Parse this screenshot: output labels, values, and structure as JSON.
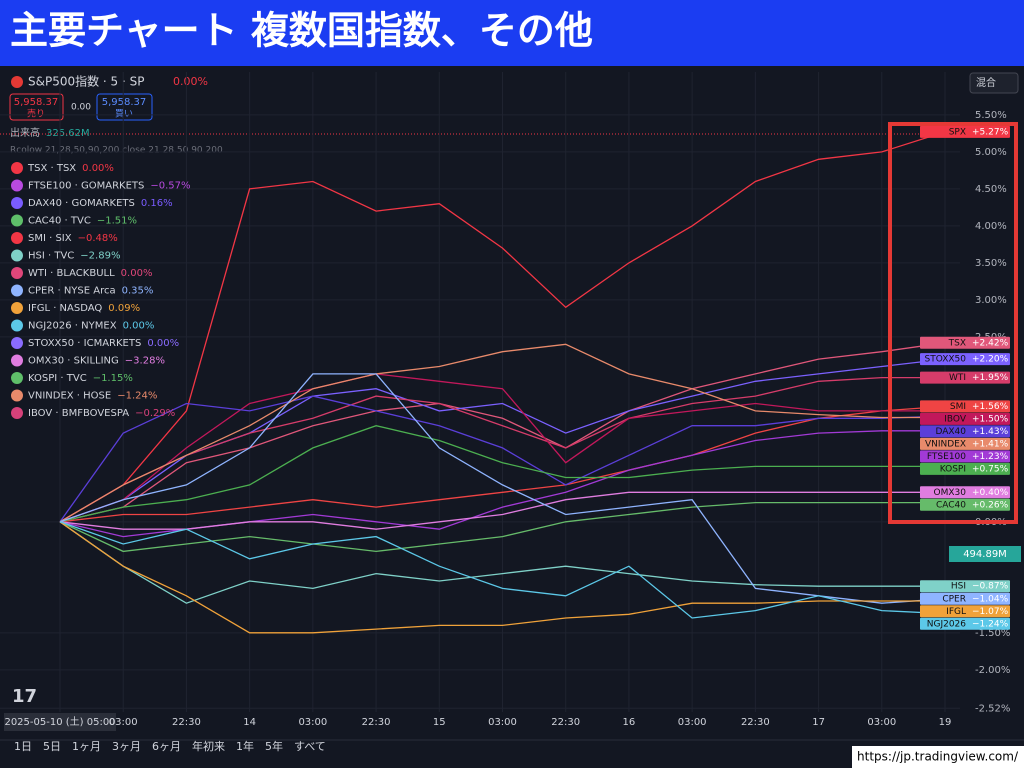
{
  "header": {
    "title": "主要チャート 複数国指数、その他"
  },
  "toolbar": {
    "symbol": "S&P500指数 · 5 · SP",
    "change": "0.00%",
    "sell_price": "5,958.37",
    "sell_label": "売り",
    "spread": "0.00",
    "buy_price": "5,958.37",
    "buy_label": "買い",
    "volume_label": "出来高",
    "volume_value": "325.62M",
    "indicator": "Rcolow 21,28,50,90,200 close 21 28 50 90 200",
    "scale_mode": "混合"
  },
  "legend_items": [
    {
      "name": "TSX · TSX",
      "change": "0.00%",
      "color": "#f23645"
    },
    {
      "name": "FTSE100 · GOMARKETS",
      "change": "−0.57%",
      "color": "#b84ae0"
    },
    {
      "name": "DAX40 · GOMARKETS",
      "change": "0.16%",
      "color": "#7a5cff"
    },
    {
      "name": "CAC40 · TVC",
      "change": "−1.51%",
      "color": "#5fbf6a"
    },
    {
      "name": "SMI · SIX",
      "change": "−0.48%",
      "color": "#f23645"
    },
    {
      "name": "HSI · TVC",
      "change": "−2.89%",
      "color": "#7fd1c8"
    },
    {
      "name": "WTI · BLACKBULL",
      "change": "0.00%",
      "color": "#e0467a"
    },
    {
      "name": "CPER · NYSE Arca",
      "change": "0.35%",
      "color": "#8fb4ff"
    },
    {
      "name": "IFGL · NASDAQ",
      "change": "0.09%",
      "color": "#f0a23a"
    },
    {
      "name": "NGJ2026 · NYMEX",
      "change": "0.00%",
      "color": "#5cc8e8"
    },
    {
      "name": "STOXX50 · ICMARKETS",
      "change": "0.00%",
      "color": "#8a6cff"
    },
    {
      "name": "OMX30 · SKILLING",
      "change": "−3.28%",
      "color": "#e07de0"
    },
    {
      "name": "KOSPI · TVC",
      "change": "−1.15%",
      "color": "#5fbf6a"
    },
    {
      "name": "VNINDEX · HOSE",
      "change": "−1.24%",
      "color": "#e88a6b"
    },
    {
      "name": "IBOV · BMFBOVESPA",
      "change": "−0.29%",
      "color": "#d6417a"
    }
  ],
  "chart_data": {
    "type": "line",
    "categories": [
      "2025-05-10 (土)  05:00",
      "03:00",
      "22:30",
      "14",
      "03:00",
      "22:30",
      "15",
      "03:00",
      "22:30",
      "16",
      "03:00",
      "22:30",
      "17",
      "03:00",
      "19"
    ],
    "ylim": [
      -2.57,
      6.08
    ],
    "yticks": [
      {
        "value": 5.5,
        "label": "5.50%"
      },
      {
        "value": 5.0,
        "label": "5.00%"
      },
      {
        "value": 4.5,
        "label": "4.50%"
      },
      {
        "value": 4.0,
        "label": "4.00%"
      },
      {
        "value": 3.5,
        "label": "3.50%"
      },
      {
        "value": 3.0,
        "label": "3.00%"
      },
      {
        "value": 2.5,
        "label": "2.50%"
      },
      {
        "value": 0,
        "label": "0.00%"
      },
      {
        "value": -1.5,
        "label": "-1.50%"
      },
      {
        "value": -2.0,
        "label": "-2.00%"
      },
      {
        "value": -2.52,
        "label": "-2.52%"
      }
    ],
    "grid": true,
    "volume_badge": "494.89M",
    "series": [
      {
        "name": "SPX",
        "color": "#f23645",
        "values": [
          0,
          0.5,
          1.5,
          4.5,
          4.6,
          4.2,
          4.3,
          3.7,
          2.9,
          3.5,
          4.0,
          4.6,
          4.9,
          5.0,
          5.27
        ],
        "value_labels": [
          "+5.27%"
        ]
      },
      {
        "name": "TSX",
        "color": "#e0577a",
        "values": [
          0,
          0.2,
          0.8,
          1.0,
          1.3,
          1.5,
          1.6,
          1.4,
          1.0,
          1.5,
          1.8,
          2.0,
          2.2,
          2.3,
          2.42
        ],
        "value_labels": [
          "+2.42%"
        ]
      },
      {
        "name": "STOXX50",
        "color": "#7b61ff",
        "values": [
          0,
          0.3,
          0.9,
          1.2,
          1.7,
          1.8,
          1.5,
          1.6,
          1.2,
          1.5,
          1.7,
          1.9,
          2.0,
          2.1,
          2.2
        ],
        "value_labels": [
          "+2.20%"
        ]
      },
      {
        "name": "WTI",
        "color": "#d63c6a",
        "values": [
          0,
          0.5,
          0.9,
          1.2,
          1.4,
          1.7,
          1.6,
          1.3,
          1.0,
          1.4,
          1.6,
          1.7,
          1.9,
          1.95,
          1.95
        ],
        "value_labels": [
          "+1.95%"
        ]
      },
      {
        "name": "SMI",
        "color": "#ef4444",
        "values": [
          0,
          0.1,
          0.1,
          0.2,
          0.3,
          0.2,
          0.3,
          0.4,
          0.5,
          0.7,
          0.9,
          1.2,
          1.4,
          1.5,
          1.56
        ],
        "value_labels": [
          "+1.56%"
        ]
      },
      {
        "name": "IBOV",
        "color": "#c2185b",
        "values": [
          0,
          0.3,
          1.0,
          1.6,
          1.8,
          2.0,
          1.9,
          1.8,
          0.8,
          1.4,
          1.5,
          1.6,
          1.5,
          1.5,
          1.5
        ],
        "value_labels": [
          "+1.50%"
        ]
      },
      {
        "name": "DAX40",
        "color": "#5b3fd9",
        "values": [
          0,
          1.2,
          1.6,
          1.5,
          1.7,
          1.5,
          1.3,
          1.0,
          0.5,
          0.9,
          1.3,
          1.3,
          1.4,
          1.4,
          1.43
        ],
        "value_labels": [
          "+1.43%"
        ]
      },
      {
        "name": "VNINDEX",
        "color": "#e88a6b",
        "values": [
          0,
          0.5,
          0.9,
          1.3,
          1.8,
          2.0,
          2.1,
          2.3,
          2.4,
          2.0,
          1.8,
          1.5,
          1.45,
          1.41,
          1.41
        ],
        "value_labels": [
          "+1.41%"
        ]
      },
      {
        "name": "FTSE100",
        "color": "#a23ad6",
        "values": [
          0,
          -0.2,
          -0.1,
          0,
          0.1,
          0,
          -0.1,
          0.2,
          0.4,
          0.7,
          0.9,
          1.1,
          1.2,
          1.23,
          1.23
        ],
        "value_labels": [
          "+1.23%"
        ]
      },
      {
        "name": "KOSPI",
        "color": "#4caf50",
        "values": [
          0,
          0.2,
          0.3,
          0.5,
          1.0,
          1.3,
          1.1,
          0.8,
          0.6,
          0.6,
          0.7,
          0.75,
          0.75,
          0.75,
          0.75
        ],
        "value_labels": [
          "+0.75%"
        ]
      },
      {
        "name": "OMX30",
        "color": "#e07de0",
        "values": [
          0,
          -0.1,
          -0.1,
          0,
          0,
          -0.1,
          0,
          0.1,
          0.3,
          0.4,
          0.4,
          0.4,
          0.4,
          0.4,
          0.4
        ],
        "value_labels": [
          "+0.40%"
        ]
      },
      {
        "name": "CAC40",
        "color": "#66bb6a",
        "values": [
          0,
          -0.4,
          -0.3,
          -0.2,
          -0.3,
          -0.4,
          -0.3,
          -0.2,
          0,
          0.1,
          0.2,
          0.26,
          0.26,
          0.26,
          0.26
        ],
        "value_labels": [
          "+0.26%"
        ]
      },
      {
        "name": "HSI",
        "color": "#7fd1c8",
        "values": [
          0,
          -0.6,
          -1.1,
          -0.8,
          -0.9,
          -0.7,
          -0.8,
          -0.7,
          -0.6,
          -0.7,
          -0.8,
          -0.85,
          -0.87,
          -0.87,
          -0.87
        ],
        "value_labels": [
          "−0.87%"
        ]
      },
      {
        "name": "CPER",
        "color": "#8fb4ff",
        "values": [
          0,
          0.3,
          0.5,
          1.0,
          2.0,
          2.0,
          1.0,
          0.5,
          0.1,
          0.2,
          0.3,
          -0.9,
          -1.0,
          -1.1,
          -1.04
        ],
        "value_labels": [
          "−1.04%"
        ]
      },
      {
        "name": "IFGL",
        "color": "#f0a23a",
        "values": [
          0,
          -0.6,
          -1.0,
          -1.5,
          -1.5,
          -1.45,
          -1.4,
          -1.4,
          -1.3,
          -1.25,
          -1.1,
          -1.1,
          -1.07,
          -1.07,
          -1.07
        ],
        "value_labels": [
          "−1.07%"
        ]
      },
      {
        "name": "NGJ2026",
        "color": "#5cc8e8",
        "values": [
          0,
          -0.3,
          -0.1,
          -0.5,
          -0.3,
          -0.2,
          -0.6,
          -0.9,
          -1.0,
          -0.6,
          -1.3,
          -1.2,
          -1.0,
          -1.2,
          -1.24
        ],
        "value_labels": [
          "−1.24%"
        ]
      }
    ]
  },
  "range_buttons": [
    "1日",
    "5日",
    "1ヶ月",
    "3ヶ月",
    "6ヶ月",
    "年初来",
    "1年",
    "5年",
    "すべて"
  ],
  "footer": {
    "url": "https://jp.tradingview.com/"
  }
}
